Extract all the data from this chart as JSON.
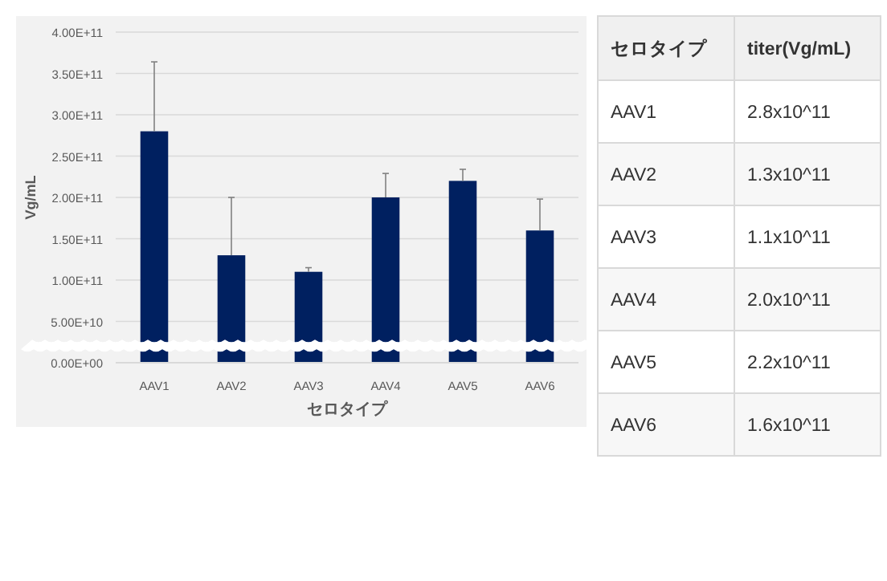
{
  "chart_data": {
    "type": "bar",
    "xlabel": "セロタイプ",
    "ylabel": "Vg/mL",
    "categories": [
      "AAV1",
      "AAV2",
      "AAV3",
      "AAV4",
      "AAV5",
      "AAV6"
    ],
    "values": [
      280000000000.0,
      130000000000.0,
      110000000000.0,
      200000000000.0,
      220000000000.0,
      160000000000.0
    ],
    "errors": [
      [
        280000000000.0,
        364000000000.0
      ],
      [
        130000000000.0,
        200000000000.0
      ],
      [
        110000000000.0,
        115000000000.0
      ],
      [
        200000000000.0,
        229000000000.0
      ],
      [
        220000000000.0,
        234000000000.0
      ],
      [
        160000000000.0,
        198000000000.0
      ]
    ],
    "annotations": [
      "セロタイプ",
      "titer(Vg/mL)",
      "2.8x10^11",
      "1.3x10^11",
      "1.1x10^11",
      "2.0x10^11",
      "2.2x10^11",
      "1.6x10^11"
    ],
    "color": "#002060",
    "ylim": [
      0,
      400000000000.0
    ],
    "yticks": [
      {
        "value": 0,
        "label": "0.00E+00"
      },
      {
        "value": 50000000000.0,
        "label": "5.00E+10"
      },
      {
        "value": 100000000000.0,
        "label": "1.00E+11"
      },
      {
        "value": 150000000000.0,
        "label": "1.50E+11"
      },
      {
        "value": 200000000000.0,
        "label": "2.00E+11"
      },
      {
        "value": 250000000000.0,
        "label": "2.50E+11"
      },
      {
        "value": 300000000000.0,
        "label": "3.00E+11"
      },
      {
        "value": 350000000000.0,
        "label": "3.50E+11"
      },
      {
        "value": 400000000000.0,
        "label": "4.00E+11"
      }
    ],
    "grid": "y"
  }
}
